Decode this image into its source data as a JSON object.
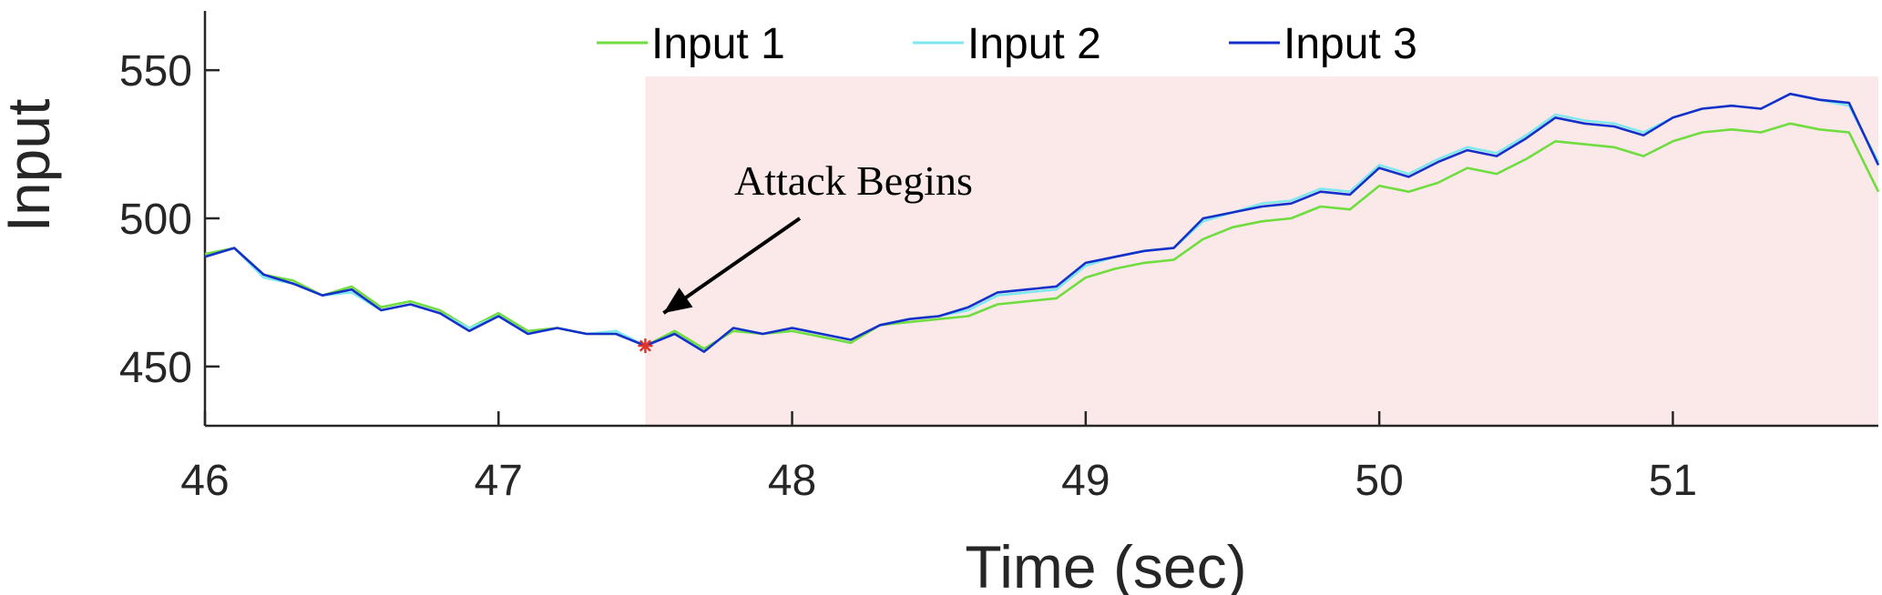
{
  "chart_data": {
    "type": "line",
    "title": "",
    "xlabel": "Time (sec)",
    "ylabel": "Input",
    "xlim": [
      46,
      51.7
    ],
    "ylim": [
      430,
      570
    ],
    "xticks": [
      46,
      47,
      48,
      49,
      50,
      51
    ],
    "yticks": [
      450,
      500,
      550
    ],
    "grid": false,
    "legend_position": "top",
    "attack_region": {
      "x_start": 47.5,
      "x_end": 51.7,
      "color": "#fbe9e9"
    },
    "annotation": {
      "text": "Attack Begins",
      "point": [
        47.5,
        457
      ],
      "marker_color": "#e0332a"
    },
    "series": [
      {
        "name": "Input 1",
        "color": "#6fdc3f",
        "x": [
          46.0,
          46.1,
          46.2,
          46.3,
          46.4,
          46.5,
          46.6,
          46.7,
          46.8,
          46.9,
          47.0,
          47.1,
          47.2,
          47.3,
          47.4,
          47.5,
          47.6,
          47.7,
          47.8,
          47.9,
          48.0,
          48.1,
          48.2,
          48.3,
          48.4,
          48.5,
          48.6,
          48.7,
          48.8,
          48.9,
          49.0,
          49.1,
          49.2,
          49.3,
          49.4,
          49.5,
          49.6,
          49.7,
          49.8,
          49.9,
          50.0,
          50.1,
          50.2,
          50.3,
          50.4,
          50.5,
          50.6,
          50.7,
          50.8,
          50.9,
          51.0,
          51.1,
          51.2,
          51.3,
          51.4,
          51.5,
          51.6,
          51.7
        ],
        "y": [
          488,
          490,
          481,
          479,
          474,
          477,
          470,
          472,
          469,
          463,
          468,
          462,
          463,
          461,
          461,
          457,
          462,
          456,
          462,
          461,
          462,
          460,
          458,
          464,
          465,
          466,
          467,
          471,
          472,
          473,
          480,
          483,
          485,
          486,
          493,
          497,
          499,
          500,
          504,
          503,
          511,
          509,
          512,
          517,
          515,
          520,
          526,
          525,
          524,
          521,
          526,
          529,
          530,
          529,
          532,
          530,
          529,
          509
        ]
      },
      {
        "name": "Input 2",
        "color": "#7ee8ee",
        "x": [
          46.0,
          46.1,
          46.2,
          46.3,
          46.4,
          46.5,
          46.6,
          46.7,
          46.8,
          46.9,
          47.0,
          47.1,
          47.2,
          47.3,
          47.4,
          47.5,
          47.6,
          47.7,
          47.8,
          47.9,
          48.0,
          48.1,
          48.2,
          48.3,
          48.4,
          48.5,
          48.6,
          48.7,
          48.8,
          48.9,
          49.0,
          49.1,
          49.2,
          49.3,
          49.4,
          49.5,
          49.6,
          49.7,
          49.8,
          49.9,
          50.0,
          50.1,
          50.2,
          50.3,
          50.4,
          50.5,
          50.6,
          50.7,
          50.8,
          50.9,
          51.0,
          51.1,
          51.2,
          51.3,
          51.4,
          51.5,
          51.6,
          51.7
        ],
        "y": [
          487,
          490,
          480,
          478,
          474,
          475,
          469,
          471,
          468,
          463,
          467,
          461,
          463,
          461,
          462,
          457,
          461,
          455,
          463,
          461,
          463,
          461,
          459,
          464,
          466,
          467,
          469,
          474,
          475,
          476,
          484,
          487,
          489,
          490,
          499,
          502,
          505,
          506,
          510,
          509,
          518,
          515,
          520,
          524,
          522,
          528,
          535,
          533,
          532,
          529,
          534,
          537,
          538,
          537,
          542,
          540,
          538,
          519
        ]
      },
      {
        "name": "Input 3",
        "color": "#1530c8",
        "x": [
          46.0,
          46.1,
          46.2,
          46.3,
          46.4,
          46.5,
          46.6,
          46.7,
          46.8,
          46.9,
          47.0,
          47.1,
          47.2,
          47.3,
          47.4,
          47.5,
          47.6,
          47.7,
          47.8,
          47.9,
          48.0,
          48.1,
          48.2,
          48.3,
          48.4,
          48.5,
          48.6,
          48.7,
          48.8,
          48.9,
          49.0,
          49.1,
          49.2,
          49.3,
          49.4,
          49.5,
          49.6,
          49.7,
          49.8,
          49.9,
          50.0,
          50.1,
          50.2,
          50.3,
          50.4,
          50.5,
          50.6,
          50.7,
          50.8,
          50.9,
          51.0,
          51.1,
          51.2,
          51.3,
          51.4,
          51.5,
          51.6,
          51.7
        ],
        "y": [
          487,
          490,
          481,
          478,
          474,
          476,
          469,
          471,
          468,
          462,
          467,
          461,
          463,
          461,
          461,
          457,
          461,
          455,
          463,
          461,
          463,
          461,
          459,
          464,
          466,
          467,
          470,
          475,
          476,
          477,
          485,
          487,
          489,
          490,
          500,
          502,
          504,
          505,
          509,
          508,
          517,
          514,
          519,
          523,
          521,
          527,
          534,
          532,
          531,
          528,
          534,
          537,
          538,
          537,
          542,
          540,
          539,
          518
        ]
      }
    ]
  }
}
